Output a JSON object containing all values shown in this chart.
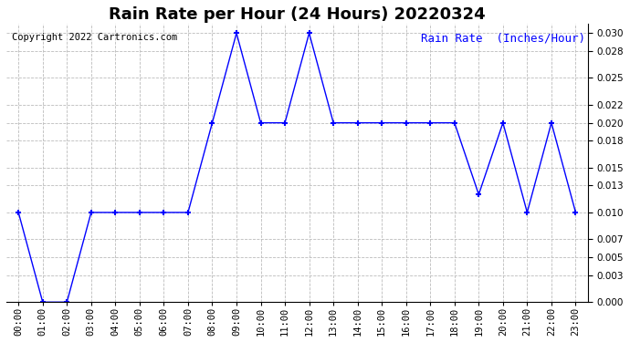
{
  "title": "Rain Rate per Hour (24 Hours) 20220324",
  "copyright_text": "Copyright 2022 Cartronics.com",
  "ylabel": "Rain Rate  (Inches/Hour)",
  "hours": [
    0,
    1,
    2,
    3,
    4,
    5,
    6,
    7,
    8,
    9,
    10,
    11,
    12,
    13,
    14,
    15,
    16,
    17,
    18,
    19,
    20,
    21,
    22,
    23
  ],
  "values": [
    0.01,
    0.0,
    0.0,
    0.01,
    0.01,
    0.01,
    0.01,
    0.01,
    0.02,
    0.03,
    0.02,
    0.02,
    0.03,
    0.02,
    0.02,
    0.02,
    0.02,
    0.02,
    0.02,
    0.012,
    0.02,
    0.01,
    0.02,
    0.01
  ],
  "line_color": "blue",
  "marker": "+",
  "marker_size": 5,
  "ylim": [
    0.0,
    0.031
  ],
  "yticks": [
    0.0,
    0.003,
    0.005,
    0.007,
    0.01,
    0.013,
    0.015,
    0.018,
    0.02,
    0.022,
    0.025,
    0.028,
    0.03
  ],
  "background_color": "white",
  "grid_color": "#bbbbbb",
  "title_fontsize": 13,
  "copyright_fontsize": 7.5,
  "ylabel_fontsize": 9,
  "tick_fontsize": 7.5,
  "ylabel_color": "blue"
}
